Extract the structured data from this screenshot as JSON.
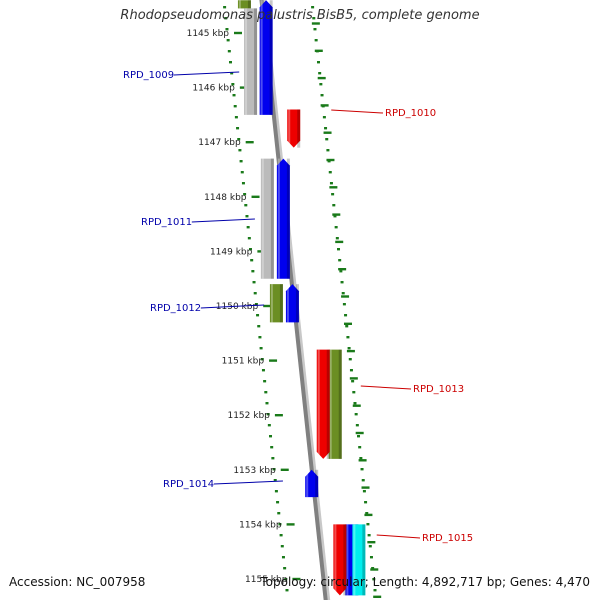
{
  "title": "Rhodopseudomonas palustris BisB5, complete genome",
  "footer": {
    "accession": "Accession: NC_007958",
    "summary": "Topology: circular; Length: 4,892,717 bp; Genes: 4,470"
  },
  "ticks": [
    {
      "label": "1145 kbp",
      "kbp": 1145
    },
    {
      "label": "1146 kbp",
      "kbp": 1146
    },
    {
      "label": "1147 kbp",
      "kbp": 1147
    },
    {
      "label": "1148 kbp",
      "kbp": 1148
    },
    {
      "label": "1149 kbp",
      "kbp": 1149
    },
    {
      "label": "1150 kbp",
      "kbp": 1150
    },
    {
      "label": "1151 kbp",
      "kbp": 1151
    },
    {
      "label": "1152 kbp",
      "kbp": 1152
    },
    {
      "label": "1153 kbp",
      "kbp": 1153
    },
    {
      "label": "1154 kbp",
      "kbp": 1154
    },
    {
      "label": "1155 kbp",
      "kbp": 1155
    }
  ],
  "genes": [
    {
      "label": "RPD_1009",
      "strand": "-",
      "start_kbp": 1144.4,
      "end_kbp": 1146.5,
      "color": "#0000ee",
      "label_color": "#0000aa"
    },
    {
      "label": "RPD_1010",
      "strand": "+",
      "start_kbp": 1146.4,
      "end_kbp": 1147.1,
      "color": "#ee0000",
      "label_color": "#cc0000"
    },
    {
      "label": "RPD_1011",
      "strand": "-",
      "start_kbp": 1147.3,
      "end_kbp": 1149.5,
      "color": "#0000ee",
      "label_color": "#0000aa"
    },
    {
      "label": "RPD_1012",
      "strand": "-",
      "start_kbp": 1149.6,
      "end_kbp": 1150.3,
      "color": "#0000ee",
      "label_color": "#0000aa"
    },
    {
      "label": "RPD_1013",
      "strand": "+",
      "start_kbp": 1150.8,
      "end_kbp": 1152.8,
      "color": "#ee0000",
      "label_color": "#cc0000"
    },
    {
      "label": "RPD_1014",
      "strand": "-",
      "start_kbp": 1153.0,
      "end_kbp": 1153.5,
      "color": "#0000ee",
      "label_color": "#0000aa"
    },
    {
      "label": "RPD_1015",
      "strand": "+",
      "start_kbp": 1154.0,
      "end_kbp": 1155.3,
      "color": "#ee0000",
      "label_color": "#cc0000"
    }
  ],
  "features": [
    {
      "type": "cog",
      "side": "left",
      "start_kbp": 1144.4,
      "end_kbp": 1144.55,
      "color": "#6b8e23"
    },
    {
      "type": "cog",
      "side": "left",
      "start_kbp": 1144.55,
      "end_kbp": 1146.5,
      "color": "#bbbbbb"
    },
    {
      "type": "cog",
      "side": "left",
      "start_kbp": 1147.3,
      "end_kbp": 1149.5,
      "color": "#bbbbbb"
    },
    {
      "type": "cog",
      "side": "left",
      "start_kbp": 1149.6,
      "end_kbp": 1150.3,
      "color": "#6b8e23"
    },
    {
      "type": "cog",
      "side": "right",
      "start_kbp": 1150.8,
      "end_kbp": 1152.8,
      "color": "#6b8e23"
    },
    {
      "type": "cog",
      "side": "right",
      "start_kbp": 1154.0,
      "end_kbp": 1155.3,
      "color": "#0000ee"
    },
    {
      "type": "cog",
      "side": "right2",
      "start_kbp": 1154.0,
      "end_kbp": 1155.3,
      "color": "#00eeee"
    }
  ],
  "colors": {
    "backbone": "#808080",
    "tick_ring": "#1a7a1a",
    "forward": "#ee0000",
    "reverse": "#0000ee"
  }
}
